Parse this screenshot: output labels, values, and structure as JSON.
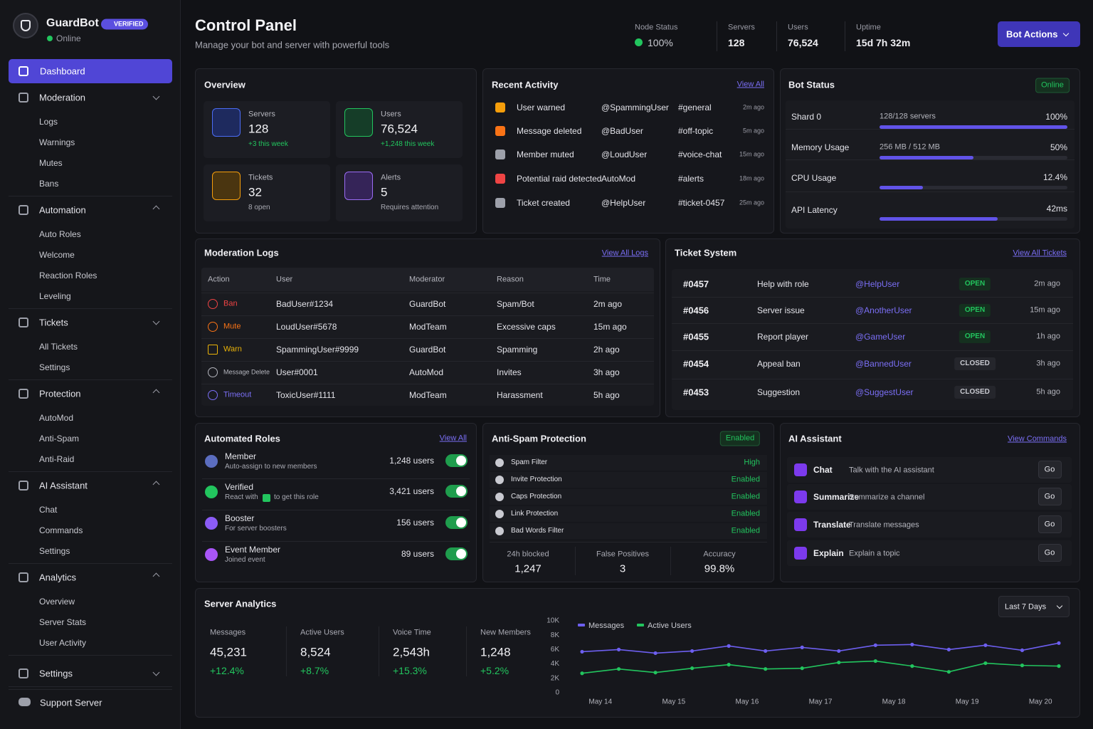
{
  "brand": {
    "name": "GuardBot",
    "badge": "VERIFIED",
    "status": "Online"
  },
  "nav": [
    {
      "label": "Dashboard",
      "active": true
    },
    {
      "label": "Moderation",
      "items": [
        "Logs",
        "Warnings",
        "Mutes",
        "Bans"
      ]
    },
    {
      "label": "Automation",
      "items": [
        "Auto Roles",
        "Welcome",
        "Reaction Roles",
        "Leveling"
      ]
    },
    {
      "label": "Tickets",
      "items": [
        "All Tickets",
        "Settings"
      ]
    },
    {
      "label": "Protection",
      "items": [
        "AutoMod",
        "Anti-Spam",
        "Anti-Raid"
      ]
    },
    {
      "label": "AI Assistant",
      "items": [
        "Chat",
        "Commands",
        "Settings"
      ]
    },
    {
      "label": "Analytics",
      "items": [
        "Overview",
        "Server Stats",
        "User Activity"
      ]
    },
    {
      "label": "Settings",
      "items": []
    }
  ],
  "support": "Support Server",
  "header": {
    "title": "Control Panel",
    "subtitle": "Manage your bot and server with powerful tools",
    "stats": [
      {
        "label": "Node Status",
        "value": "100%"
      },
      {
        "label": "Servers",
        "value": "128"
      },
      {
        "label": "Users",
        "value": "76,524"
      },
      {
        "label": "Uptime",
        "value": "15d 7h 32m"
      }
    ],
    "button": "Bot Actions"
  },
  "overview": {
    "title": "Overview",
    "cards": [
      {
        "label": "Servers",
        "value": "128",
        "note": "+3 this week"
      },
      {
        "label": "Users",
        "value": "76,524",
        "note": "+1,248 this week"
      },
      {
        "label": "Tickets",
        "value": "32",
        "note": "8 open"
      },
      {
        "label": "Alerts",
        "value": "5",
        "note": "Requires attention"
      }
    ]
  },
  "activity": {
    "title": "Recent Activity",
    "link": "View All",
    "rows": [
      [
        "User warned",
        "@SpammingUser",
        "#general",
        "2m ago"
      ],
      [
        "Message deleted",
        "@BadUser",
        "#off-topic",
        "5m ago"
      ],
      [
        "Member muted",
        "@LoudUser",
        "#voice-chat",
        "15m ago"
      ],
      [
        "Potential raid detected",
        "AutoMod",
        "#alerts",
        "18m ago"
      ],
      [
        "Ticket created",
        "@HelpUser",
        "#ticket-0457",
        "25m ago"
      ]
    ]
  },
  "bot_status": {
    "title": "Bot Status",
    "badge": "Online",
    "rows": [
      {
        "label": "Shard 0",
        "detail": "128/128 servers",
        "value": "100%",
        "level": 100
      },
      {
        "label": "Memory Usage",
        "detail": "256 MB / 512 MB",
        "value": "50%",
        "level": 50
      },
      {
        "label": "CPU Usage",
        "value": "12.4%",
        "level": 23
      },
      {
        "label": "API Latency",
        "value": "42ms",
        "level": 63
      }
    ]
  },
  "moderation_logs": {
    "title": "Moderation Logs",
    "link": "View All Logs",
    "columns": [
      "Action",
      "User",
      "Moderator",
      "Reason",
      "Time"
    ],
    "rows": [
      [
        "Ban",
        "BadUser#1234",
        "GuardBot",
        "Spam/Bot",
        "2m ago"
      ],
      [
        "Mute",
        "LoudUser#5678",
        "ModTeam",
        "Excessive caps",
        "15m ago"
      ],
      [
        "Warn",
        "SpammingUser#9999",
        "GuardBot",
        "Spamming",
        "2h ago"
      ],
      [
        "Message Delete",
        "User#0001",
        "AutoMod",
        "Invites",
        "3h ago"
      ],
      [
        "Timeout",
        "ToxicUser#1111",
        "ModTeam",
        "Harassment",
        "5h ago"
      ]
    ]
  },
  "tickets": {
    "title": "Ticket System",
    "link": "View All Tickets",
    "rows": [
      [
        "#0457",
        "Help with role",
        "@HelpUser",
        "OPEN",
        "2m ago"
      ],
      [
        "#0456",
        "Server issue",
        "@AnotherUser",
        "OPEN",
        "15m ago"
      ],
      [
        "#0455",
        "Report player",
        "@GameUser",
        "OPEN",
        "1h ago"
      ],
      [
        "#0454",
        "Appeal ban",
        "@BannedUser",
        "CLOSED",
        "3h ago"
      ],
      [
        "#0453",
        "Suggestion",
        "@SuggestUser",
        "CLOSED",
        "5h ago"
      ]
    ]
  },
  "roles": {
    "title": "Automated Roles",
    "link": "View All",
    "rows": [
      {
        "name": "Member",
        "desc": "Auto-assign to new members",
        "count": "1,248 users",
        "enabled": true
      },
      {
        "name": "Verified",
        "desc": "React with",
        "desc_after": "to get this role",
        "count": "3,421 users",
        "enabled": true
      },
      {
        "name": "Booster",
        "desc": "For server boosters",
        "count": "156 users",
        "enabled": true
      },
      {
        "name": "Event Member",
        "desc": "Joined event",
        "count": "89 users",
        "enabled": true
      }
    ]
  },
  "antispam": {
    "title": "Anti-Spam Protection",
    "badge": "Enabled",
    "rows": [
      [
        "Spam Filter",
        "High"
      ],
      [
        "Invite Protection",
        "Enabled"
      ],
      [
        "Caps Protection",
        "Enabled"
      ],
      [
        "Link Protection",
        "Enabled"
      ],
      [
        "Bad Words Filter",
        "Enabled"
      ]
    ],
    "stats": [
      {
        "label": "24h blocked",
        "value": "1,247"
      },
      {
        "label": "False Positives",
        "value": "3"
      },
      {
        "label": "Accuracy",
        "value": "99.8%"
      }
    ]
  },
  "ai": {
    "title": "AI Assistant",
    "link": "View Commands",
    "rows": [
      {
        "name": "Chat",
        "desc": "Talk with the AI assistant",
        "button": "Go"
      },
      {
        "name": "Summarize",
        "desc": "Summarize a channel",
        "button": "Go"
      },
      {
        "name": "Translate",
        "desc": "Translate messages",
        "button": "Go"
      },
      {
        "name": "Explain",
        "desc": "Explain a topic",
        "button": "Go"
      }
    ]
  },
  "analytics": {
    "title": "Server Analytics",
    "range": "Last 7 Days",
    "stats": [
      {
        "label": "Messages",
        "value": "45,231",
        "change": "+12.4%"
      },
      {
        "label": "Active Users",
        "value": "8,524",
        "change": "+8.7%"
      },
      {
        "label": "Voice Time",
        "value": "2,543h",
        "change": "+15.3%"
      },
      {
        "label": "New Members",
        "value": "1,248",
        "change": "+5.2%"
      }
    ]
  },
  "chart_data": {
    "type": "line",
    "categories": [
      "May 14",
      null,
      "May 15",
      null,
      "May 16",
      null,
      "May 17",
      null,
      "May 18",
      null,
      "May 19",
      null,
      "May 20",
      null
    ],
    "series": [
      {
        "name": "Messages",
        "color": "#6d5ff0",
        "values": [
          5700,
          6000,
          5500,
          5800,
          6500,
          5800,
          6300,
          5800,
          6600,
          6700,
          6000,
          6600,
          5900,
          6900
        ]
      },
      {
        "name": "Active Users",
        "color": "#22c55e",
        "values": [
          2700,
          3300,
          2800,
          3400,
          3900,
          3300,
          3400,
          4200,
          4400,
          3700,
          2900,
          4100,
          3800,
          3700
        ]
      }
    ],
    "ylim": [
      0,
      10000
    ],
    "yticks": [
      {
        "value": 0,
        "label": "0"
      },
      {
        "value": 2000,
        "label": "2K"
      },
      {
        "value": 4000,
        "label": "4K"
      },
      {
        "value": 6000,
        "label": "6K"
      },
      {
        "value": 8000,
        "label": "8K"
      },
      {
        "value": 10000,
        "label": "10K"
      }
    ],
    "grid": false,
    "legend": "top-left"
  }
}
